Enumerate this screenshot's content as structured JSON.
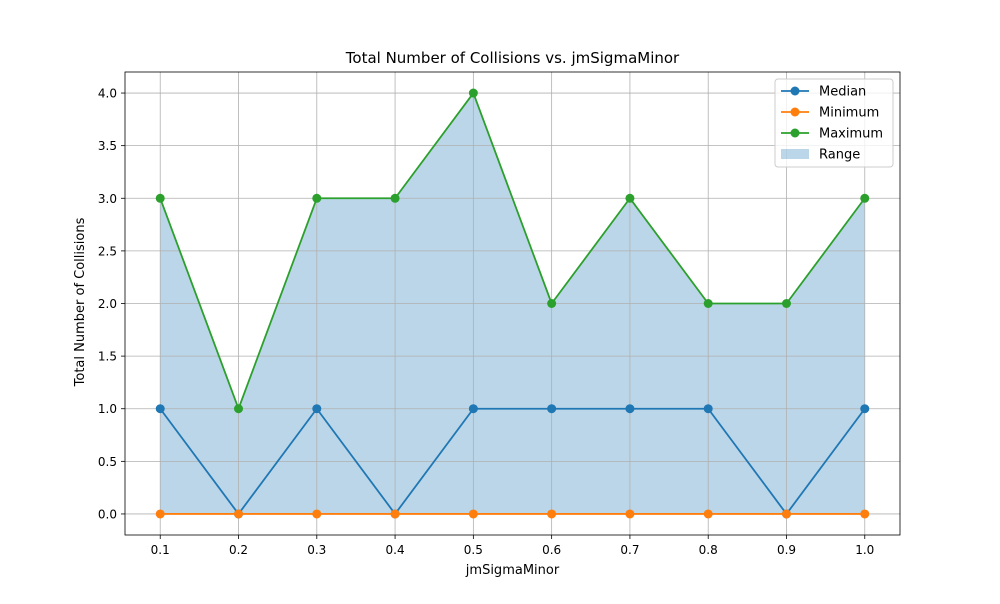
{
  "chart_data": {
    "type": "line",
    "title": "Total Number of Collisions vs. jmSigmaMinor",
    "xlabel": "jmSigmaMinor",
    "ylabel": "Total Number of Collisions",
    "x": [
      0.1,
      0.2,
      0.3,
      0.4,
      0.5,
      0.6,
      0.7,
      0.8,
      0.9,
      1.0
    ],
    "xlim": [
      0.055,
      1.045
    ],
    "ylim": [
      -0.2,
      4.2
    ],
    "xticks": [
      "0.1",
      "0.2",
      "0.3",
      "0.4",
      "0.5",
      "0.6",
      "0.7",
      "0.8",
      "0.9",
      "1.0"
    ],
    "yticks": [
      "0.0",
      "0.5",
      "1.0",
      "1.5",
      "2.0",
      "2.5",
      "3.0",
      "3.5",
      "4.0"
    ],
    "grid": true,
    "legend_position": "top-right",
    "series": [
      {
        "name": "Median",
        "color": "#1f77b4",
        "values": [
          1,
          0,
          1,
          0,
          1,
          1,
          1,
          1,
          0,
          1
        ]
      },
      {
        "name": "Minimum",
        "color": "#ff7f0e",
        "values": [
          0,
          0,
          0,
          0,
          0,
          0,
          0,
          0,
          0,
          0
        ]
      },
      {
        "name": "Maximum",
        "color": "#2ca02c",
        "values": [
          3,
          1,
          3,
          3,
          4,
          2,
          3,
          2,
          2,
          3
        ]
      }
    ],
    "range": {
      "name": "Range",
      "color": "#1f77b4",
      "opacity": 0.3
    }
  }
}
